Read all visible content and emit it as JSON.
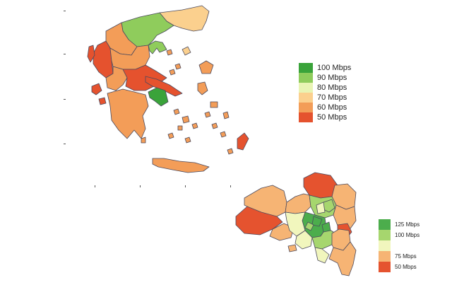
{
  "maps": {
    "greece": {
      "legend": [
        {
          "label": "100 Mbps",
          "color": "#3aa33a"
        },
        {
          "label": "90 Mbps",
          "color": "#8fcc5c"
        },
        {
          "label": "80 Mbps",
          "color": "#e9f4b4"
        },
        {
          "label": "70 Mbps",
          "color": "#fbd08e"
        },
        {
          "label": "60 Mbps",
          "color": "#f39d58"
        },
        {
          "label": "50 Mbps",
          "color": "#e5522e"
        }
      ]
    },
    "attica": {
      "legend": [
        {
          "label": "125 Mbps",
          "color": "#4cad4c"
        },
        {
          "label": "100 Mbps",
          "color": "#a6d66e"
        },
        {
          "label": "",
          "color": "#f1f6bd"
        },
        {
          "label": "75 Mbps",
          "color": "#f6b474"
        },
        {
          "label": "50 Mbps",
          "color": "#e5532f"
        }
      ]
    }
  }
}
